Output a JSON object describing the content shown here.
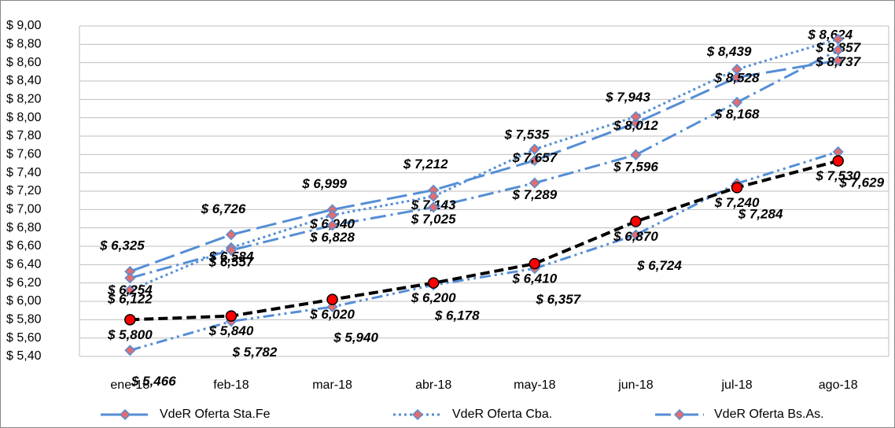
{
  "chart_data": {
    "type": "line",
    "categories": [
      "ene-18",
      "feb-18",
      "mar-18",
      "abr-18",
      "may-18",
      "jun-18",
      "jul-18",
      "ago-18"
    ],
    "ylim": [
      5.4,
      9.0
    ],
    "yticks": [
      {
        "value": 5.4,
        "label": "$ 5,40"
      },
      {
        "value": 5.6,
        "label": "$ 5,60"
      },
      {
        "value": 5.8,
        "label": "$ 5,80"
      },
      {
        "value": 6.0,
        "label": "$ 6,00"
      },
      {
        "value": 6.2,
        "label": "$ 6,20"
      },
      {
        "value": 6.4,
        "label": "$ 6,40"
      },
      {
        "value": 6.6,
        "label": "$ 6,60"
      },
      {
        "value": 6.8,
        "label": "$ 6,80"
      },
      {
        "value": 7.0,
        "label": "$ 7,00"
      },
      {
        "value": 7.2,
        "label": "$ 7,20"
      },
      {
        "value": 7.4,
        "label": "$ 7,40"
      },
      {
        "value": 7.6,
        "label": "$ 7,60"
      },
      {
        "value": 7.8,
        "label": "$ 7,80"
      },
      {
        "value": 8.0,
        "label": "$ 8,00"
      },
      {
        "value": 8.2,
        "label": "$ 8,20"
      },
      {
        "value": 8.4,
        "label": "$ 8,40"
      },
      {
        "value": 8.6,
        "label": "$ 8,60"
      },
      {
        "value": 8.8,
        "label": "$ 8,80"
      },
      {
        "value": 9.0,
        "label": "$ 9,00"
      }
    ],
    "grid": true,
    "legend": "bottom",
    "series": [
      {
        "name": "VdeR Oferta Sta.Fe",
        "color": "#558ed5",
        "style": "long-dash",
        "label_color": "#604a7b",
        "values": [
          6.325,
          6.726,
          6.999,
          7.212,
          7.535,
          7.943,
          8.439,
          8.624
        ],
        "value_labels": [
          "$ 6,325",
          "$ 6,726",
          "$ 6,999",
          "$ 7,212",
          "$ 7,535",
          "$ 7,943",
          "$ 8,439",
          "$ 8,624"
        ]
      },
      {
        "name": "VdeR Oferta Cba.",
        "color": "#558ed5",
        "style": "dotted",
        "label_color": "#c0631b",
        "values": [
          6.122,
          6.584,
          6.94,
          7.143,
          7.657,
          8.012,
          8.528,
          8.857
        ],
        "value_labels": [
          "$ 6,122",
          "$ 6,584",
          "$ 6,940",
          "$ 7,143",
          "$ 7,657",
          "$ 8,012",
          "$ 8,528",
          "$ 8,857"
        ]
      },
      {
        "name": "VdeR Oferta Bs.As.",
        "color": "#558ed5",
        "style": "dash-dot",
        "label_color": "#4f6228",
        "values": [
          6.254,
          6.557,
          6.828,
          7.025,
          7.289,
          7.596,
          8.168,
          8.737
        ],
        "value_labels": [
          "$ 6,254",
          "$ 6,557",
          "$ 6,828",
          "$ 7,025",
          "$ 7,289",
          "$ 7,596",
          "$ 8,168",
          "$ 8,737"
        ]
      },
      {
        "color": "#558ed5",
        "style": "dash-dot-dot",
        "label_color": "#17375e",
        "values": [
          5.466,
          5.782,
          5.94,
          6.178,
          6.357,
          6.724,
          7.284,
          7.629
        ],
        "value_labels": [
          "$ 5,466",
          "$ 5,782",
          "$ 5,940",
          "$ 6,178",
          "$ 6,357",
          "$ 6,724",
          "$ 7,284",
          "$ 7,629"
        ]
      },
      {
        "color": "#000000",
        "style": "thick-dash",
        "label_color": "#000000",
        "marker": "circle",
        "values": [
          5.8,
          5.84,
          6.02,
          6.2,
          6.41,
          6.87,
          7.24,
          7.53
        ],
        "value_labels": [
          "$ 5,800",
          "$ 5,840",
          "$ 6,020",
          "$ 6,200",
          "$ 6,410",
          "$ 6,870",
          "$ 7,240",
          "$ 7,530"
        ]
      }
    ]
  }
}
